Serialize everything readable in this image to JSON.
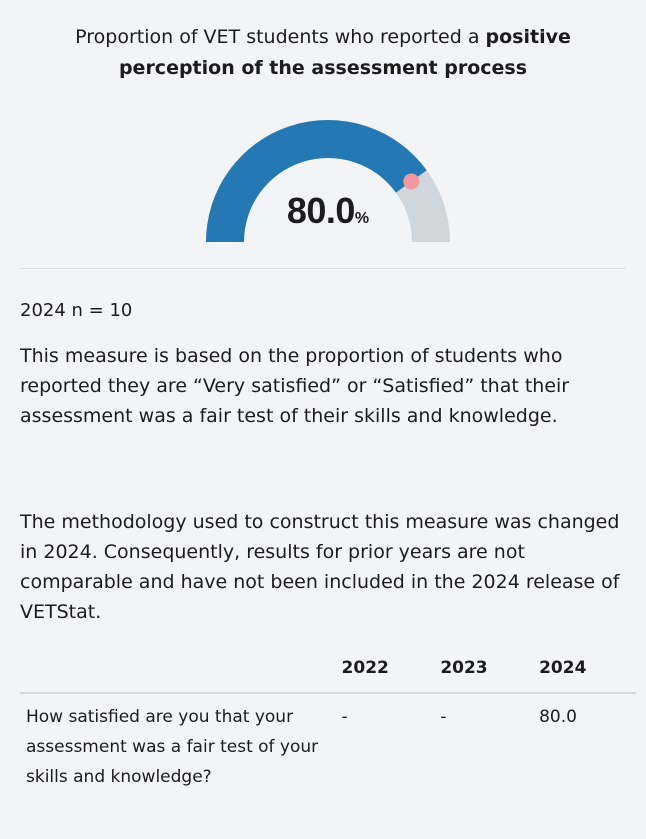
{
  "title": {
    "prefix": "Proportion of VET students who reported a ",
    "bold": "positive perception of the assessment process"
  },
  "chart_data": {
    "type": "gauge",
    "value": 80.0,
    "value_display": "80.0",
    "unit": "%",
    "min": 0,
    "max": 100,
    "colors": {
      "track": "#cfd6dc",
      "fill": "#2479b4",
      "marker": "#f4999b"
    }
  },
  "sample": "2024 n = 10",
  "description": [
    "This measure is based on the proportion of students who reported they are  “Very satisfied” or “Satisfied” that their assessment was a fair test of their skills and knowledge.",
    "The methodology used to construct this measure was changed in 2024. Consequently, results for prior years are not comparable and have not been included in the 2024 release of VETStat."
  ],
  "table": {
    "headers": [
      "",
      "2022",
      "2023",
      "2024"
    ],
    "rows": [
      {
        "question": "How satisfied are you that your assessment was a fair test of your skills and knowledge?",
        "values": [
          "-",
          "-",
          "80.0"
        ]
      }
    ]
  }
}
